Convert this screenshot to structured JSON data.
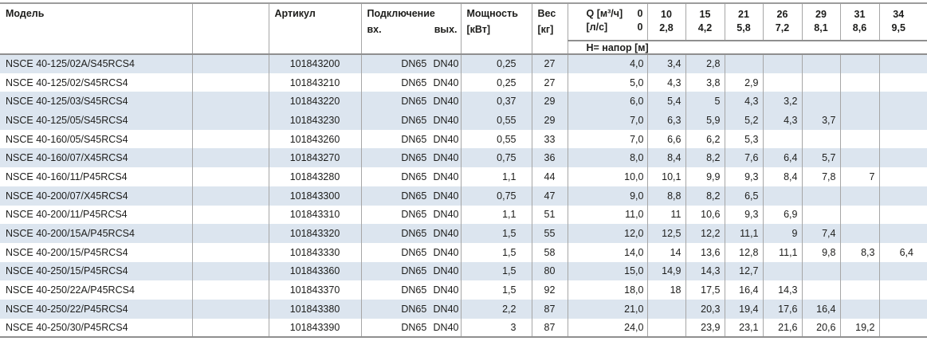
{
  "colors": {
    "stripe": "#dce5ef",
    "rule_light": "#a6a6a6",
    "rule_heavy": "#8f8f8f",
    "text": "#1d1d1b"
  },
  "table": {
    "headers": {
      "model": "Модель",
      "article": "Артикул",
      "connection": "Подключение",
      "inlet": "вх.",
      "outlet": "вых.",
      "power_line1": "Мощность",
      "power_line2": "[кВт]",
      "weight_line1": "Вес",
      "weight_line2": "[кг]",
      "q_label": "Q [м³/ч]",
      "q_zero": "0",
      "ls_label": "[л/с]",
      "ls_zero": "0",
      "head_label": "H= напор [м]",
      "flow_cols": [
        {
          "m3h": "10",
          "ls": "2,8"
        },
        {
          "m3h": "15",
          "ls": "4,2"
        },
        {
          "m3h": "21",
          "ls": "5,8"
        },
        {
          "m3h": "26",
          "ls": "7,2"
        },
        {
          "m3h": "29",
          "ls": "8,1"
        },
        {
          "m3h": "31",
          "ls": "8,6"
        },
        {
          "m3h": "34",
          "ls": "9,5"
        }
      ]
    },
    "rows": [
      {
        "model": "NSCE 40-125/02A/S45RCS4",
        "article": "101843200",
        "inlet": "DN65",
        "outlet": "DN40",
        "power": "0,25",
        "weight": "27",
        "q0": "4,0",
        "heads": [
          "3,4",
          "2,8",
          "",
          "",
          "",
          "",
          ""
        ],
        "shaded": true
      },
      {
        "model": "NSCE 40-125/02/S45RCS4",
        "article": "101843210",
        "inlet": "DN65",
        "outlet": "DN40",
        "power": "0,25",
        "weight": "27",
        "q0": "5,0",
        "heads": [
          "4,3",
          "3,8",
          "2,9",
          "",
          "",
          "",
          ""
        ],
        "shaded": false
      },
      {
        "model": "NSCE 40-125/03/S45RCS4",
        "article": "101843220",
        "inlet": "DN65",
        "outlet": "DN40",
        "power": "0,37",
        "weight": "29",
        "q0": "6,0",
        "heads": [
          "5,4",
          "5",
          "4,3",
          "3,2",
          "",
          "",
          ""
        ],
        "shaded": true
      },
      {
        "model": "NSCE 40-125/05/S45RCS4",
        "article": "101843230",
        "inlet": "DN65",
        "outlet": "DN40",
        "power": "0,55",
        "weight": "29",
        "q0": "7,0",
        "heads": [
          "6,3",
          "5,9",
          "5,2",
          "4,3",
          "3,7",
          "",
          ""
        ],
        "shaded": true
      },
      {
        "model": "NSCE 40-160/05/S45RCS4",
        "article": "101843260",
        "inlet": "DN65",
        "outlet": "DN40",
        "power": "0,55",
        "weight": "33",
        "q0": "7,0",
        "heads": [
          "6,6",
          "6,2",
          "5,3",
          "",
          "",
          "",
          ""
        ],
        "shaded": false
      },
      {
        "model": "NSCE 40-160/07/X45RCS4",
        "article": "101843270",
        "inlet": "DN65",
        "outlet": "DN40",
        "power": "0,75",
        "weight": "36",
        "q0": "8,0",
        "heads": [
          "8,4",
          "8,2",
          "7,6",
          "6,4",
          "5,7",
          "",
          ""
        ],
        "shaded": true
      },
      {
        "model": "NSCE 40-160/11/P45RCS4",
        "article": "101843280",
        "inlet": "DN65",
        "outlet": "DN40",
        "power": "1,1",
        "weight": "44",
        "q0": "10,0",
        "heads": [
          "10,1",
          "9,9",
          "9,3",
          "8,4",
          "7,8",
          "7",
          ""
        ],
        "shaded": false
      },
      {
        "model": "NSCE 40-200/07/X45RCS4",
        "article": "101843300",
        "inlet": "DN65",
        "outlet": "DN40",
        "power": "0,75",
        "weight": "47",
        "q0": "9,0",
        "heads": [
          "8,8",
          "8,2",
          "6,5",
          "",
          "",
          "",
          ""
        ],
        "shaded": true
      },
      {
        "model": "NSCE 40-200/11/P45RCS4",
        "article": "101843310",
        "inlet": "DN65",
        "outlet": "DN40",
        "power": "1,1",
        "weight": "51",
        "q0": "11,0",
        "heads": [
          "11",
          "10,6",
          "9,3",
          "6,9",
          "",
          "",
          ""
        ],
        "shaded": false
      },
      {
        "model": "NSCE 40-200/15A/P45RCS4",
        "article": "101843320",
        "inlet": "DN65",
        "outlet": "DN40",
        "power": "1,5",
        "weight": "55",
        "q0": "12,0",
        "heads": [
          "12,5",
          "12,2",
          "11,1",
          "9",
          "7,4",
          "",
          ""
        ],
        "shaded": true
      },
      {
        "model": "NSCE 40-200/15/P45RCS4",
        "article": "101843330",
        "inlet": "DN65",
        "outlet": "DN40",
        "power": "1,5",
        "weight": "58",
        "q0": "14,0",
        "heads": [
          "14",
          "13,6",
          "12,8",
          "11,1",
          "9,8",
          "8,3",
          "6,4"
        ],
        "shaded": false
      },
      {
        "model": "NSCE 40-250/15/P45RCS4",
        "article": "101843360",
        "inlet": "DN65",
        "outlet": "DN40",
        "power": "1,5",
        "weight": "80",
        "q0": "15,0",
        "heads": [
          "14,9",
          "14,3",
          "12,7",
          "",
          "",
          "",
          ""
        ],
        "shaded": true
      },
      {
        "model": "NSCE 40-250/22A/P45RCS4",
        "article": "101843370",
        "inlet": "DN65",
        "outlet": "DN40",
        "power": "1,5",
        "weight": "92",
        "q0": "18,0",
        "heads": [
          "18",
          "17,5",
          "16,4",
          "14,3",
          "",
          "",
          ""
        ],
        "shaded": false
      },
      {
        "model": "NSCE 40-250/22/P45RCS4",
        "article": "101843380",
        "inlet": "DN65",
        "outlet": "DN40",
        "power": "2,2",
        "weight": "87",
        "q0": "21,0",
        "heads": [
          "",
          "20,3",
          "19,4",
          "17,6",
          "16,4",
          "",
          ""
        ],
        "shaded": true
      },
      {
        "model": "NSCE 40-250/30/P45RCS4",
        "article": "101843390",
        "inlet": "DN65",
        "outlet": "DN40",
        "power": "3",
        "weight": "87",
        "q0": "24,0",
        "heads": [
          "",
          "23,9",
          "23,1",
          "21,6",
          "20,6",
          "19,2",
          ""
        ],
        "shaded": false
      }
    ]
  }
}
